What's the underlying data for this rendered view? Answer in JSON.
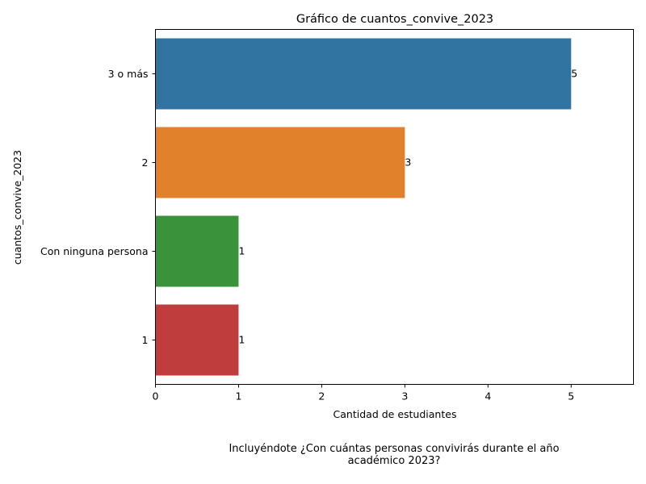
{
  "chart_data": {
    "type": "bar",
    "orientation": "horizontal",
    "title": "Gráfico de cuantos_convive_2023",
    "xlabel": "Cantidad de estudiantes",
    "ylabel": "cuantos_convive_2023",
    "categories": [
      "3 o más",
      "2",
      "Con ninguna persona",
      "1"
    ],
    "values": [
      5,
      3,
      1,
      1
    ],
    "data_labels": [
      "5",
      "3",
      "1",
      "1"
    ],
    "colors": [
      "#3274a1",
      "#e1812c",
      "#3a923a",
      "#c03d3e"
    ],
    "xlim": [
      0,
      5.75
    ],
    "xticks": [
      0,
      1,
      2,
      3,
      4,
      5
    ],
    "xtick_labels": [
      "0",
      "1",
      "2",
      "3",
      "4",
      "5"
    ],
    "grid": false,
    "legend": false
  },
  "caption": {
    "line1": "Incluyéndote ¿Con cuántas personas convivirás durante el año",
    "line2": "académico 2023?"
  }
}
